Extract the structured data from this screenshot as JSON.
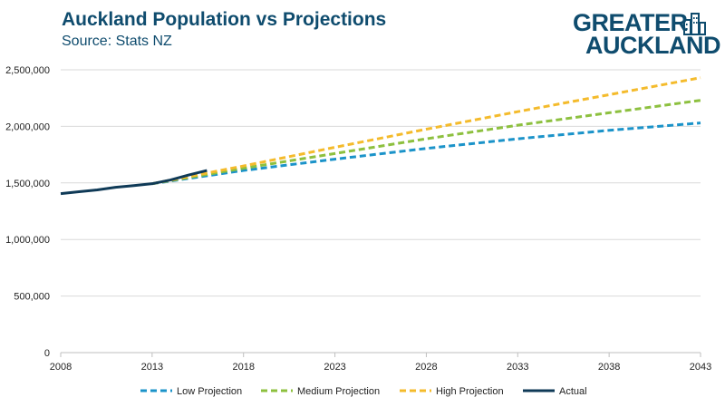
{
  "header": {
    "title": "Auckland Population vs Projections",
    "subtitle": "Source: Stats NZ"
  },
  "logo": {
    "line1": "GREATER",
    "line2": "AUCKLAND",
    "icon": "city-buildings-icon"
  },
  "colors": {
    "title": "#0f4c6e",
    "low": "#1b93c9",
    "medium": "#8dc03f",
    "high": "#f4bb2c",
    "actual": "#0f3a57",
    "grid": "#d9d9d9"
  },
  "chart_data": {
    "type": "line",
    "xlim": [
      2008,
      2043
    ],
    "ylim": [
      0,
      2500000
    ],
    "x_ticks": [
      "2008",
      "2013",
      "2018",
      "2023",
      "2028",
      "2033",
      "2038",
      "2043"
    ],
    "y_ticks": [
      "0",
      "500,000",
      "1,000,000",
      "1,500,000",
      "2,000,000",
      "2,500,000"
    ],
    "grid": "horizontal",
    "legend_position": "bottom",
    "series": [
      {
        "name": "Low Projection",
        "style": "dashed",
        "x": [
          2013,
          2018,
          2023,
          2028,
          2033,
          2038,
          2043
        ],
        "values": [
          1493000,
          1610000,
          1710000,
          1805000,
          1890000,
          1965000,
          2030000
        ]
      },
      {
        "name": "Medium Projection",
        "style": "dashed",
        "x": [
          2013,
          2018,
          2023,
          2028,
          2033,
          2038,
          2043
        ],
        "values": [
          1493000,
          1630000,
          1760000,
          1890000,
          2010000,
          2120000,
          2230000
        ]
      },
      {
        "name": "High Projection",
        "style": "dashed",
        "x": [
          2013,
          2018,
          2023,
          2028,
          2033,
          2038,
          2043
        ],
        "values": [
          1493000,
          1650000,
          1815000,
          1975000,
          2130000,
          2280000,
          2430000
        ]
      },
      {
        "name": "Actual",
        "style": "solid",
        "x": [
          2008,
          2009,
          2010,
          2011,
          2012,
          2013,
          2014,
          2015,
          2016
        ],
        "values": [
          1405000,
          1422000,
          1438000,
          1461000,
          1476000,
          1493000,
          1526000,
          1570000,
          1610000
        ]
      }
    ]
  }
}
